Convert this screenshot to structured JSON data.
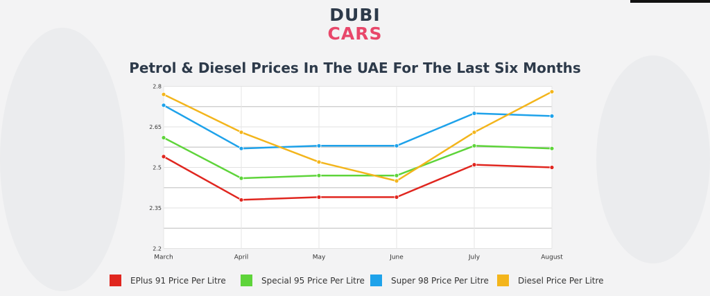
{
  "brand": {
    "line1": "DUBI",
    "line2": "CARS"
  },
  "chart_data": {
    "type": "line",
    "title": "Petrol & Diesel Prices In The UAE For The Last Six Months",
    "categories": [
      "March",
      "April",
      "May",
      "June",
      "July",
      "August"
    ],
    "ylim": [
      2.2,
      2.8
    ],
    "yticks": [
      "2.2",
      "2.35",
      "2.5",
      "2.65",
      "2.8"
    ],
    "grid": true,
    "legend_position": "bottom",
    "series": [
      {
        "name": "EPlus 91 Price Per Litre",
        "color": "#e0261f",
        "values": [
          2.54,
          2.38,
          2.39,
          2.39,
          2.51,
          2.5
        ]
      },
      {
        "name": "Special 95 Price Per Litre",
        "color": "#5ed43a",
        "values": [
          2.61,
          2.46,
          2.47,
          2.47,
          2.58,
          2.57
        ]
      },
      {
        "name": "Super 98 Price Per Litre",
        "color": "#1ea2ea",
        "values": [
          2.73,
          2.57,
          2.58,
          2.58,
          2.7,
          2.69
        ]
      },
      {
        "name": "Diesel Price Per Litre",
        "color": "#f3b51c",
        "values": [
          2.77,
          2.63,
          2.52,
          2.45,
          2.63,
          2.78
        ]
      }
    ]
  }
}
